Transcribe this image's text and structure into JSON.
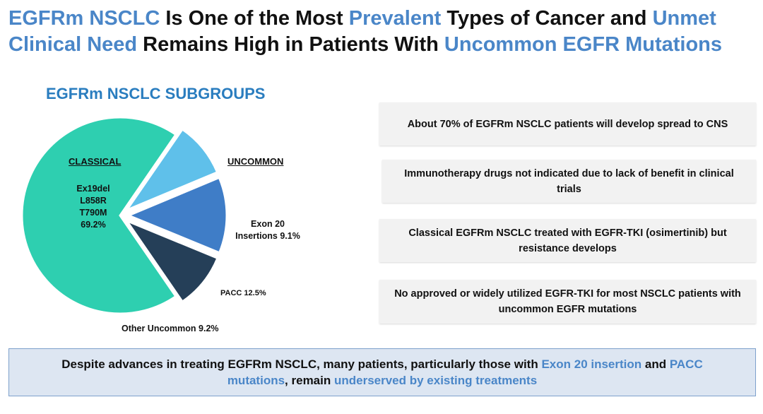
{
  "title": {
    "p1": "EGFRm NSCLC",
    "p2": " Is One of the Most ",
    "p3": "Prevalent",
    "p4": " Types of Cancer and ",
    "p5": "Unmet",
    "p6": "Clinical Need",
    "p7": " Remains High in Patients With ",
    "p8": "Uncommon EGFR Mutations"
  },
  "colors": {
    "accent": "#4a86c8",
    "classical": "#2ecfb0",
    "exon20": "#5fc0ea",
    "pacc": "#3f7dc7",
    "other": "#253f58"
  },
  "chart_data": {
    "type": "pie",
    "title": "EGFRm NSCLC SUBGROUPS",
    "group_labels": {
      "classical": "CLASSICAL",
      "uncommon": "UNCOMMON"
    },
    "classical_mutations": [
      "Ex19del",
      "L858R",
      "T790M"
    ],
    "slices": [
      {
        "name": "Classical",
        "value": 69.2,
        "value_label": "69.2%",
        "group": "classical",
        "exploded": false
      },
      {
        "name": "Exon 20 Insertions",
        "value": 9.1,
        "line1": "Exon 20",
        "line2": "Insertions 9.1%",
        "group": "uncommon",
        "exploded": true
      },
      {
        "name": "PACC",
        "value": 12.5,
        "label": "PACC 12.5%",
        "group": "uncommon",
        "exploded": true
      },
      {
        "name": "Other Uncommon",
        "value": 9.2,
        "label": "Other Uncommon 9.2%",
        "group": "uncommon",
        "exploded": true
      }
    ]
  },
  "info": [
    {
      "text": "About 70% of EGFRm NSCLC patients will develop spread to CNS"
    },
    {
      "text": "Immunotherapy drugs not indicated due to lack of benefit in clinical trials"
    },
    {
      "text": "Classical EGFRm NSCLC treated with EGFR-TKI (osimertinib) but resistance develops"
    },
    {
      "text": "No approved or widely utilized EGFR-TKI for most NSCLC patients with uncommon EGFR mutations"
    }
  ],
  "bottom": {
    "p1": "Despite advances in treating EGFRm NSCLC, many patients, particularly those with ",
    "p2": "Exon 20 insertion",
    "p3": " and ",
    "p4": "PACC mutations",
    "p5": ", remain ",
    "p6": "underserved by existing treatments"
  }
}
